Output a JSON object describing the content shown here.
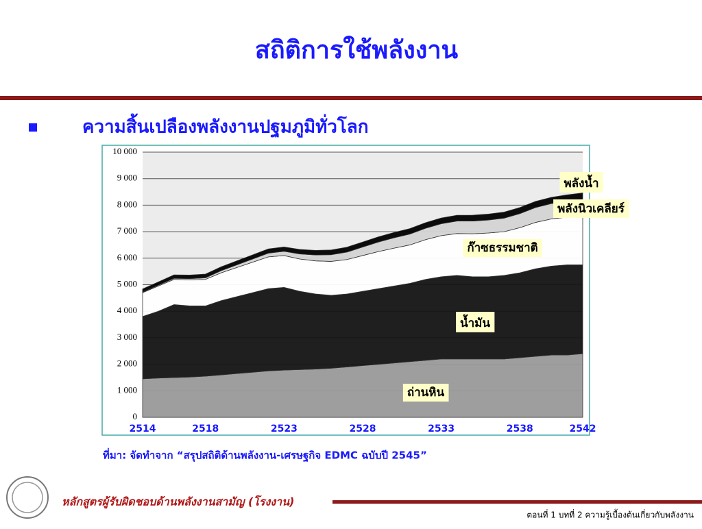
{
  "slide": {
    "title": "สถิติการใช้พลังงาน",
    "bullet": "ความสิ้นเปลืองพลังงานปฐมภูมิทั่วโลก",
    "source": "ที่มา: จัดทำจาก “สรุปสถิติด้านพลังงาน-เศรษฐกิจ EDMC ฉบับปี 2545”",
    "course": "หลักสูตรผู้รับผิดชอบด้านพลังงานสามัญ (โรงงาน)",
    "footer": "ตอนที่ 1 บทที่ 2 ความรู้เบื้องต้นเกี่ยวกับพลังงาน"
  },
  "chart_data": {
    "type": "stacked-area",
    "x": [
      2514,
      2515,
      2516,
      2517,
      2518,
      2519,
      2520,
      2521,
      2522,
      2523,
      2524,
      2525,
      2526,
      2527,
      2528,
      2529,
      2530,
      2531,
      2532,
      2533,
      2534,
      2535,
      2536,
      2537,
      2538,
      2539,
      2540,
      2541,
      2542
    ],
    "xlim": [
      2514,
      2542
    ],
    "xticks": [
      2514,
      2518,
      2523,
      2528,
      2533,
      2538,
      2542
    ],
    "ylim": [
      0,
      10000
    ],
    "yticks": [
      0,
      {
        "value": 1000,
        "label": "1 000"
      },
      {
        "value": 2000,
        "label": "2 000"
      },
      {
        "value": 3000,
        "label": "3 000"
      },
      {
        "value": 4000,
        "label": "4 000"
      },
      {
        "value": 5000,
        "label": "5 000"
      },
      {
        "value": 6000,
        "label": "6 000"
      },
      {
        "value": 7000,
        "label": "7 000"
      },
      {
        "value": 8000,
        "label": "8 000"
      },
      {
        "value": 9000,
        "label": "9 000"
      },
      {
        "value": 10000,
        "label": "10 000"
      }
    ],
    "grid": true,
    "series": [
      {
        "name": "ถ่านหิน",
        "color": "#9a9a9a",
        "values": [
          1450,
          1480,
          1500,
          1520,
          1550,
          1600,
          1650,
          1700,
          1750,
          1780,
          1800,
          1820,
          1850,
          1900,
          1950,
          2000,
          2050,
          2100,
          2150,
          2200,
          2200,
          2200,
          2200,
          2200,
          2250,
          2300,
          2350,
          2350,
          2400
        ]
      },
      {
        "name": "น้ำมัน",
        "color": "#141414",
        "values": [
          2350,
          2520,
          2750,
          2680,
          2650,
          2800,
          2900,
          3000,
          3100,
          3120,
          2950,
          2830,
          2750,
          2750,
          2800,
          2850,
          2900,
          2950,
          3050,
          3100,
          3150,
          3100,
          3100,
          3150,
          3200,
          3300,
          3350,
          3400,
          3350
        ]
      },
      {
        "name": "ก๊าซธรรมชาติ",
        "color": "#ffffff",
        "values": [
          900,
          950,
          950,
          980,
          1000,
          1050,
          1100,
          1150,
          1200,
          1200,
          1220,
          1250,
          1280,
          1300,
          1350,
          1400,
          1430,
          1450,
          1500,
          1550,
          1580,
          1620,
          1650,
          1650,
          1700,
          1750,
          1780,
          1800,
          1850
        ]
      },
      {
        "name": "พลังนิวเคลียร์",
        "color": "#d4d4d4",
        "values": [
          20,
          30,
          40,
          50,
          60,
          80,
          100,
          120,
          140,
          160,
          190,
          220,
          250,
          280,
          320,
          360,
          390,
          410,
          430,
          450,
          470,
          480,
          490,
          510,
          530,
          560,
          580,
          600,
          620
        ]
      },
      {
        "name": "พลังน้ำ",
        "color": "#000000",
        "values": [
          120,
          125,
          130,
          135,
          140,
          145,
          150,
          155,
          160,
          165,
          170,
          175,
          180,
          185,
          190,
          195,
          200,
          205,
          210,
          215,
          220,
          222,
          225,
          228,
          230,
          232,
          235,
          238,
          240
        ]
      }
    ]
  }
}
